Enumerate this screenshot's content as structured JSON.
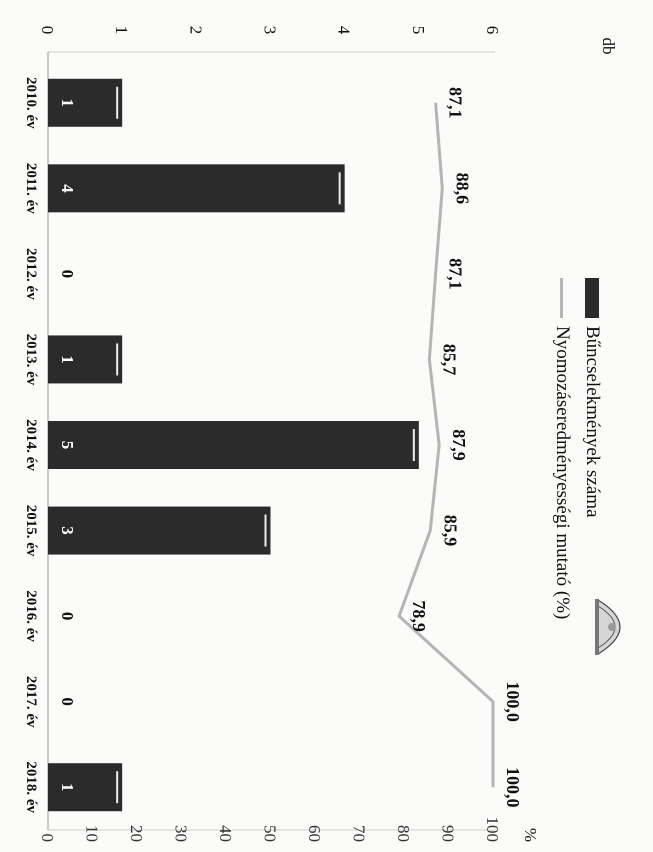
{
  "chart_data": {
    "type": "bar",
    "categories": [
      "2010. év",
      "2011. év",
      "2012. év",
      "2013. év",
      "2014. év",
      "2015. év",
      "2016. év",
      "2017. év",
      "2018. év"
    ],
    "series": [
      {
        "name": "Bűncselekmények száma",
        "type": "bar",
        "axis": "left",
        "values": [
          1,
          4,
          0,
          1,
          5,
          3,
          0,
          0,
          1
        ],
        "color": "#2b2b2b"
      },
      {
        "name": "Nyomozáseredményességi mutató (%)",
        "type": "line",
        "axis": "right",
        "values": [
          87.1,
          88.6,
          87.1,
          85.7,
          87.9,
          85.9,
          78.9,
          100.0,
          100.0
        ],
        "labels": [
          "87,1",
          "88,6",
          "87,1",
          "85,7",
          "87,9",
          "85,9",
          "78,9",
          "100,0",
          "100,0"
        ],
        "color": "#b5b5b5"
      }
    ],
    "left_axis": {
      "label": "db",
      "ylim": [
        0,
        6
      ],
      "ticks": [
        "0",
        "1",
        "2",
        "3",
        "4",
        "5",
        "6"
      ]
    },
    "right_axis": {
      "label": "%",
      "ylim": [
        0,
        100
      ],
      "ticks": [
        "0",
        "10",
        "20",
        "30",
        "40",
        "50",
        "60",
        "70",
        "80",
        "90",
        "100"
      ]
    },
    "grid": false,
    "legend_position": "top-right",
    "orientation": "image rotated 90 degrees clockwise"
  },
  "colors": {
    "bar": "#2b2b2b",
    "line": "#b5b5b5",
    "text": "#111111",
    "value_label_bar": "#ffffff"
  },
  "emblem": {
    "icon": "police-crest-icon"
  }
}
